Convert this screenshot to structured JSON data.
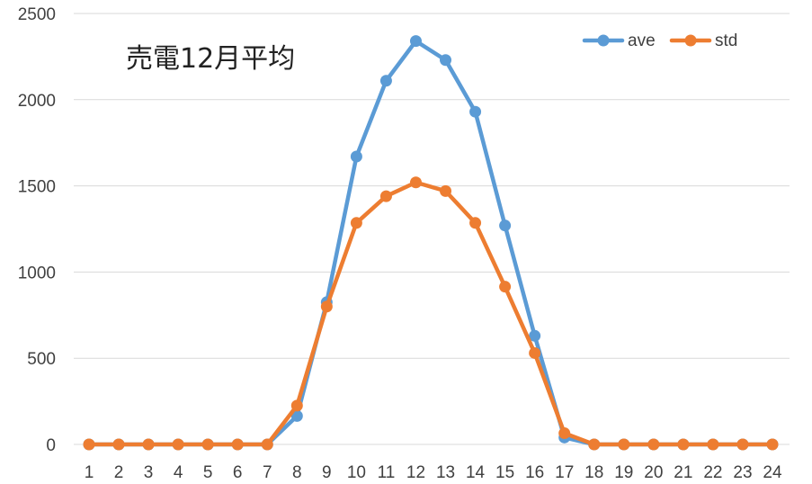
{
  "chart_data": {
    "type": "line",
    "title": "売電12月平均",
    "xlabel": "",
    "ylabel": "",
    "x": [
      "1",
      "2",
      "3",
      "4",
      "5",
      "6",
      "7",
      "8",
      "9",
      "10",
      "11",
      "12",
      "13",
      "14",
      "15",
      "16",
      "17",
      "18",
      "19",
      "20",
      "21",
      "22",
      "23",
      "24"
    ],
    "ylim": [
      0,
      2500
    ],
    "yticks": [
      0,
      500,
      1000,
      1500,
      2000,
      2500
    ],
    "grid": true,
    "legend_position": "top-right",
    "series": [
      {
        "name": "ave",
        "color": "#5b9bd5",
        "values": [
          0,
          0,
          0,
          0,
          0,
          0,
          0,
          165,
          825,
          1670,
          2110,
          2340,
          2230,
          1930,
          1270,
          630,
          40,
          0,
          0,
          0,
          0,
          0,
          0,
          0
        ]
      },
      {
        "name": "std",
        "color": "#ed7d31",
        "values": [
          0,
          0,
          0,
          0,
          0,
          0,
          0,
          225,
          800,
          1285,
          1440,
          1520,
          1470,
          1285,
          915,
          530,
          65,
          0,
          0,
          0,
          0,
          0,
          0,
          0
        ]
      }
    ]
  }
}
